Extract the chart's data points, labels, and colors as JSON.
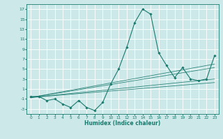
{
  "xlabel": "Humidex (Indice chaleur)",
  "ylabel": "",
  "bg_color": "#cce8e8",
  "grid_color": "#ffffff",
  "line_color": "#1a7a6e",
  "xlim": [
    -0.5,
    23.5
  ],
  "ylim": [
    -4,
    18
  ],
  "xticks": [
    0,
    1,
    2,
    3,
    4,
    5,
    6,
    7,
    8,
    9,
    10,
    11,
    12,
    13,
    14,
    15,
    16,
    17,
    18,
    19,
    20,
    21,
    22,
    23
  ],
  "yticks": [
    -3,
    -1,
    1,
    3,
    5,
    7,
    9,
    11,
    13,
    15,
    17
  ],
  "series": [
    [
      0,
      -0.5
    ],
    [
      1,
      -0.5
    ],
    [
      2,
      -1.3
    ],
    [
      3,
      -1.0
    ],
    [
      4,
      -2.0
    ],
    [
      5,
      -2.7
    ],
    [
      6,
      -1.3
    ],
    [
      7,
      -2.7
    ],
    [
      8,
      -3.3
    ],
    [
      9,
      -1.7
    ],
    [
      10,
      2.0
    ],
    [
      11,
      5.0
    ],
    [
      12,
      9.3
    ],
    [
      13,
      14.3
    ],
    [
      14,
      17.0
    ],
    [
      15,
      16.0
    ],
    [
      16,
      8.3
    ],
    [
      17,
      5.7
    ],
    [
      18,
      3.3
    ],
    [
      19,
      5.3
    ],
    [
      20,
      3.0
    ],
    [
      21,
      2.7
    ],
    [
      22,
      3.0
    ],
    [
      23,
      7.7
    ]
  ],
  "trend_lines": [
    {
      "x": [
        0,
        23
      ],
      "y": [
        -0.7,
        2.3
      ]
    },
    {
      "x": [
        0,
        23
      ],
      "y": [
        -0.7,
        3.0
      ]
    },
    {
      "x": [
        0,
        23
      ],
      "y": [
        -0.7,
        5.3
      ]
    },
    {
      "x": [
        0,
        23
      ],
      "y": [
        -0.7,
        6.0
      ]
    }
  ]
}
